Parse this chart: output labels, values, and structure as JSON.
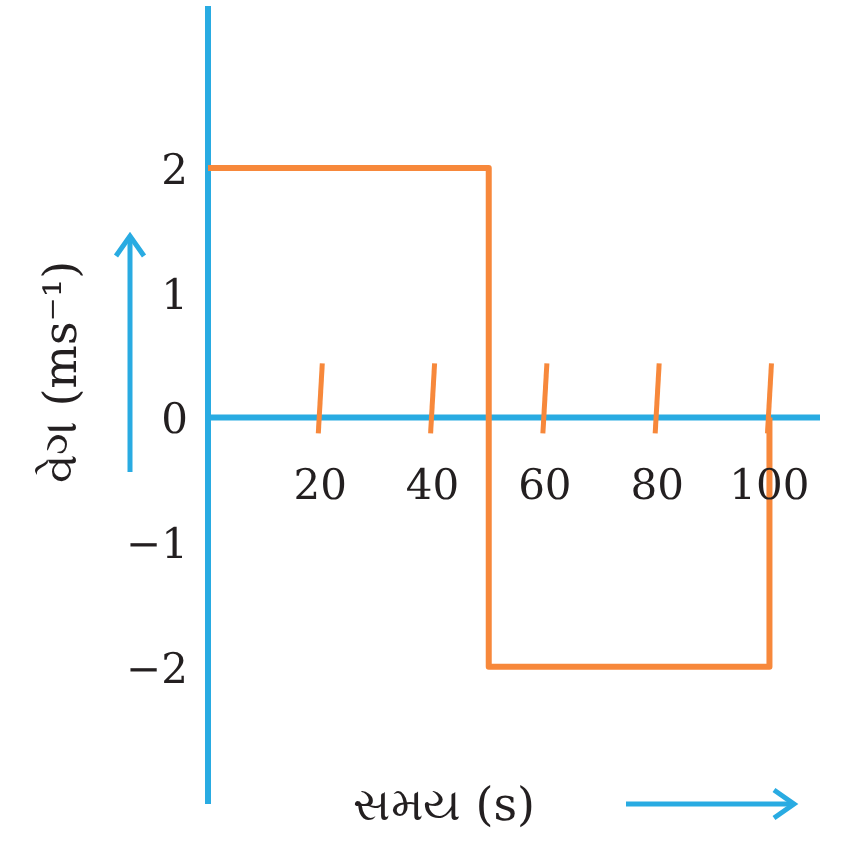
{
  "chart_data": {
    "type": "line",
    "xlabel": "સમય (s)",
    "ylabel": "વેગ (ms⁻¹)",
    "xlim": [
      0,
      109
    ],
    "ylim": [
      -3.1,
      3.3
    ],
    "xticks": [
      20,
      40,
      60,
      80,
      100
    ],
    "yticks": [
      2,
      1,
      0,
      {
        "value": -1,
        "label": "−1"
      },
      {
        "value": -2,
        "label": "−2"
      }
    ],
    "x": [
      0,
      50,
      50,
      100,
      100
    ],
    "series": [
      {
        "color": "#f7883b",
        "values": [
          2,
          2,
          -2,
          -2,
          0
        ]
      }
    ]
  }
}
